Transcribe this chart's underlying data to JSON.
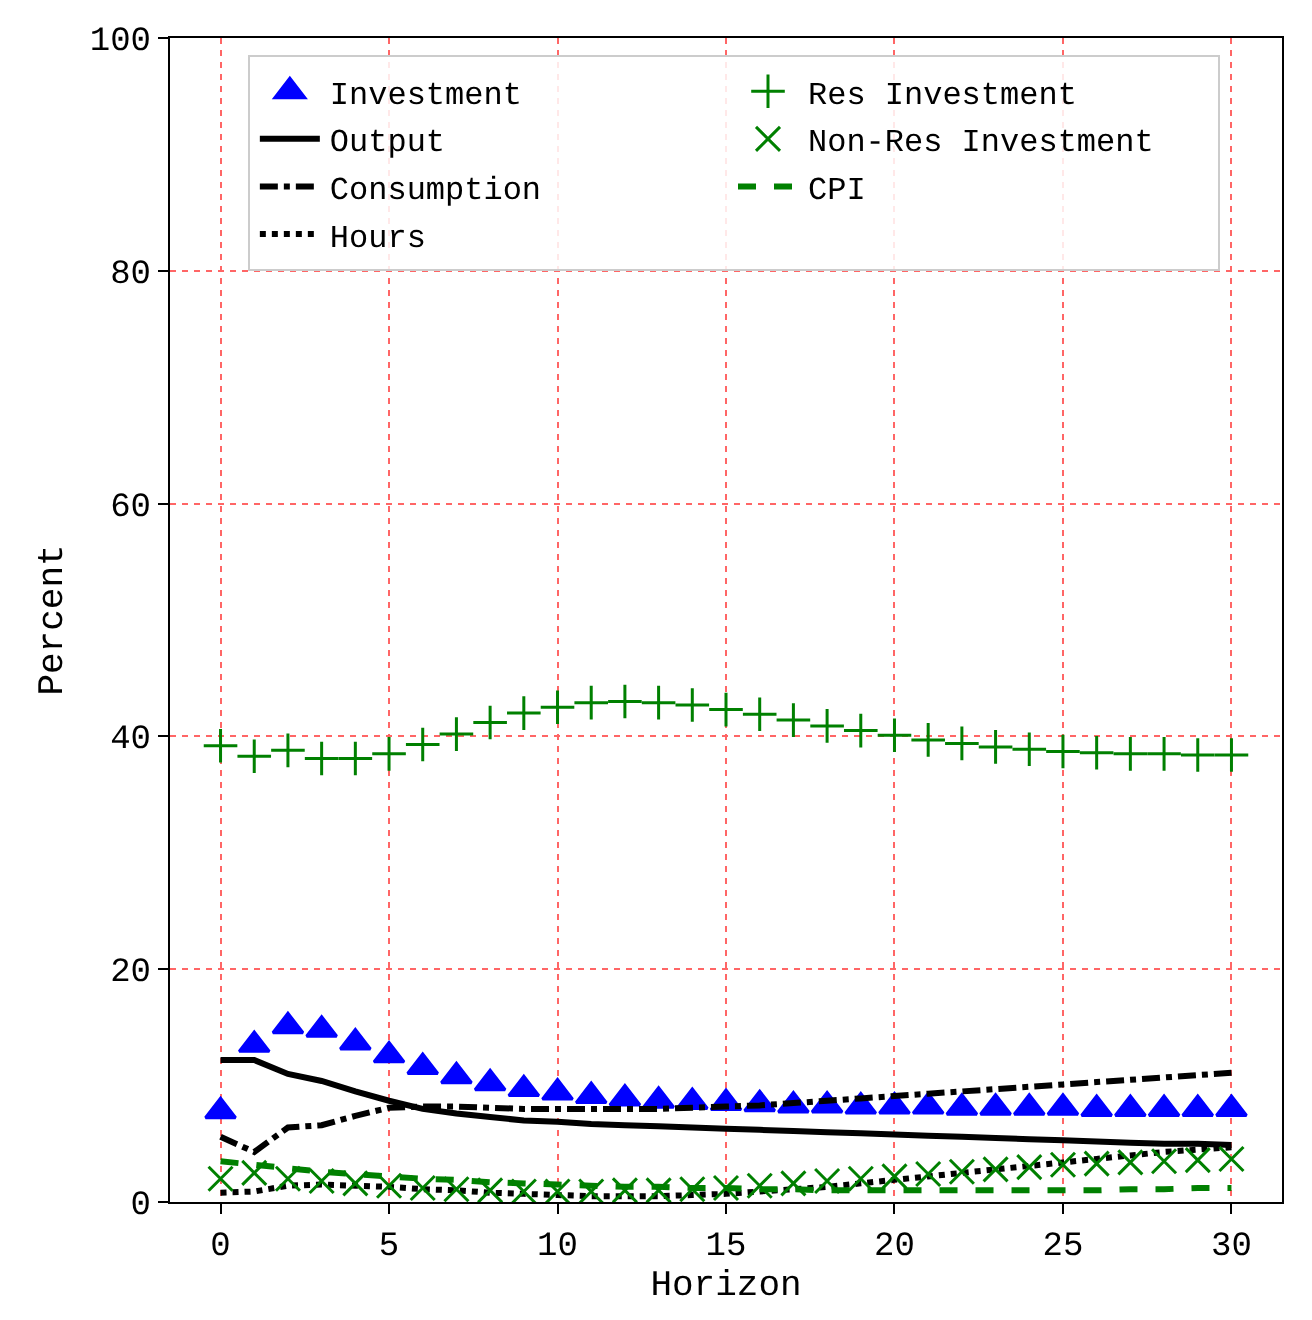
{
  "chart_data": {
    "type": "line",
    "xlabel": "Horizon",
    "ylabel": "Percent",
    "x": [
      0,
      1,
      2,
      3,
      4,
      5,
      6,
      7,
      8,
      9,
      10,
      11,
      12,
      13,
      14,
      15,
      16,
      17,
      18,
      19,
      20,
      21,
      22,
      23,
      24,
      25,
      26,
      27,
      28,
      29,
      30
    ],
    "xlim": [
      -1.5,
      31.5
    ],
    "xticks": [
      0,
      5,
      10,
      15,
      20,
      25,
      30
    ],
    "ylim": [
      0,
      100
    ],
    "yticks": [
      0,
      20,
      40,
      60,
      80,
      100
    ],
    "grid": true,
    "legend": "top",
    "series": [
      {
        "name": "Investment",
        "type": "scatter",
        "marker": "triangle",
        "color": "#0000ff",
        "values": [
          7.8,
          13.5,
          15.1,
          14.8,
          13.7,
          12.6,
          11.6,
          10.8,
          10.2,
          9.7,
          9.4,
          9.1,
          8.9,
          8.7,
          8.6,
          8.5,
          8.4,
          8.3,
          8.3,
          8.2,
          8.2,
          8.2,
          8.1,
          8.1,
          8.1,
          8.1,
          8.0,
          8.0,
          8.0,
          8.0,
          8.0
        ]
      },
      {
        "name": "Output",
        "line_style": "solid",
        "color": "#000000",
        "values": [
          12.2,
          12.2,
          11.0,
          10.4,
          9.5,
          8.7,
          8.0,
          7.6,
          7.3,
          7.0,
          6.9,
          6.7,
          6.6,
          6.5,
          6.4,
          6.3,
          6.2,
          6.1,
          6.0,
          5.9,
          5.8,
          5.7,
          5.6,
          5.5,
          5.4,
          5.3,
          5.2,
          5.1,
          5.0,
          5.0,
          4.9
        ]
      },
      {
        "name": "Consumption",
        "line_style": "dashdot",
        "color": "#000000",
        "values": [
          5.6,
          4.3,
          6.4,
          6.6,
          7.4,
          8.1,
          8.2,
          8.2,
          8.1,
          8.0,
          8.0,
          8.0,
          8.0,
          8.0,
          8.1,
          8.2,
          8.3,
          8.5,
          8.7,
          8.9,
          9.1,
          9.3,
          9.5,
          9.7,
          9.9,
          10.1,
          10.3,
          10.5,
          10.7,
          10.9,
          11.1
        ]
      },
      {
        "name": "Hours",
        "line_style": "dotted",
        "color": "#000000",
        "values": [
          0.8,
          0.9,
          1.4,
          1.5,
          1.4,
          1.3,
          1.1,
          1.0,
          0.8,
          0.7,
          0.6,
          0.5,
          0.5,
          0.5,
          0.6,
          0.7,
          0.9,
          1.1,
          1.3,
          1.6,
          1.9,
          2.2,
          2.5,
          2.8,
          3.1,
          3.4,
          3.7,
          4.0,
          4.3,
          4.5,
          4.7
        ]
      },
      {
        "name": "Res Investment",
        "type": "scatter",
        "marker": "cross",
        "color": "#008000",
        "values": [
          39.2,
          38.3,
          38.8,
          38.1,
          38.1,
          38.5,
          39.3,
          40.2,
          41.2,
          42.0,
          42.5,
          42.9,
          43.0,
          42.9,
          42.7,
          42.3,
          41.9,
          41.4,
          40.9,
          40.5,
          40.1,
          39.7,
          39.4,
          39.1,
          38.9,
          38.7,
          38.6,
          38.5,
          38.5,
          38.4,
          38.4
        ]
      },
      {
        "name": "Non-Res Investment",
        "type": "scatter",
        "marker": "x",
        "color": "#008000",
        "values": [
          2.0,
          2.5,
          2.0,
          1.8,
          1.6,
          1.4,
          1.2,
          1.1,
          1.0,
          0.9,
          0.9,
          0.9,
          1.0,
          1.0,
          1.1,
          1.2,
          1.4,
          1.6,
          1.8,
          2.0,
          2.2,
          2.4,
          2.6,
          2.8,
          3.0,
          3.2,
          3.3,
          3.4,
          3.5,
          3.6,
          3.7
        ]
      },
      {
        "name": "CPI",
        "line_style": "dashed",
        "color": "#008000",
        "values": [
          3.5,
          3.2,
          2.9,
          2.6,
          2.4,
          2.2,
          2.0,
          1.9,
          1.7,
          1.6,
          1.5,
          1.4,
          1.3,
          1.3,
          1.2,
          1.2,
          1.1,
          1.1,
          1.0,
          1.0,
          1.0,
          1.0,
          1.0,
          1.0,
          1.0,
          1.0,
          1.0,
          1.1,
          1.1,
          1.2,
          1.2
        ]
      }
    ]
  }
}
